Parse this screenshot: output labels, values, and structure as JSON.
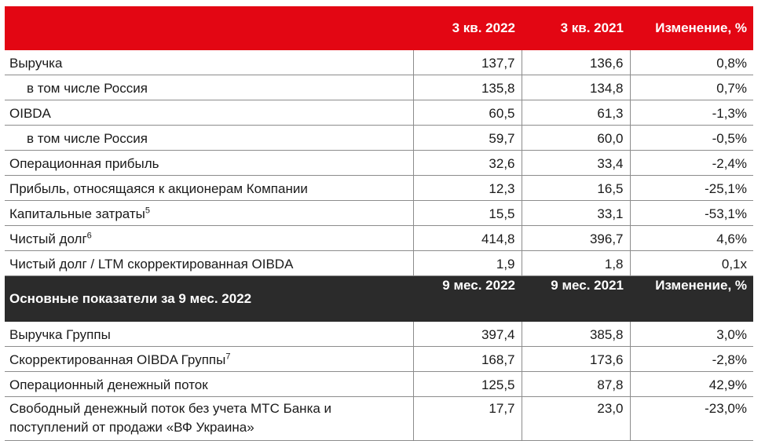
{
  "q3_header": {
    "col1": "3 кв. 2022",
    "col2": "3 кв. 2021",
    "col3": "Изменение, %"
  },
  "q3_rows": [
    {
      "label": "Выручка",
      "sup": "",
      "v1": "137,7",
      "v2": "136,6",
      "v3": "0,8%"
    },
    {
      "label": "в том числе Россия",
      "sup": "",
      "v1": "135,8",
      "v2": "134,8",
      "v3": "0,7%"
    },
    {
      "label": "OIBDA",
      "sup": "",
      "v1": "60,5",
      "v2": "61,3",
      "v3": "-1,3%"
    },
    {
      "label": "в том числе Россия",
      "sup": "",
      "v1": "59,7",
      "v2": "60,0",
      "v3": "-0,5%"
    },
    {
      "label": "Операционная прибыль",
      "sup": "",
      "v1": "32,6",
      "v2": "33,4",
      "v3": "-2,4%"
    },
    {
      "label": "Прибыль, относящаяся к акционерам Компании",
      "sup": "",
      "v1": "12,3",
      "v2": "16,5",
      "v3": "-25,1%"
    },
    {
      "label": "Капитальные затраты",
      "sup": "5",
      "v1": "15,5",
      "v2": "33,1",
      "v3": "-53,1%"
    },
    {
      "label": "Чистый долг",
      "sup": "6",
      "v1": "414,8",
      "v2": "396,7",
      "v3": "4,6%"
    },
    {
      "label": "Чистый долг / LTM скорректированная OIBDA",
      "sup": "",
      "v1": "1,9",
      "v2": "1,8",
      "v3": "0,1x"
    }
  ],
  "m9_header": {
    "title": "Основные показатели за 9 мес. 2022",
    "col1": "9 мес. 2022",
    "col2": "9 мес. 2021",
    "col3": "Изменение, %"
  },
  "m9_rows": [
    {
      "label": "Выручка Группы",
      "sup": "",
      "v1": "397,4",
      "v2": "385,8",
      "v3": "3,0%"
    },
    {
      "label": "Скорректированная OIBDA Группы",
      "sup": "7",
      "v1": "168,7",
      "v2": "173,6",
      "v3": "-2,8%"
    },
    {
      "label": "Операционный денежный поток",
      "sup": "",
      "v1": "125,5",
      "v2": "87,8",
      "v3": "42,9%"
    },
    {
      "label_line1": "Свободный денежный поток без учета МТС Банка и",
      "label_line2": "поступлений от продажи «ВФ Украина»",
      "v1": "17,7",
      "v2": "23,0",
      "v3": "-23,0%"
    }
  ]
}
